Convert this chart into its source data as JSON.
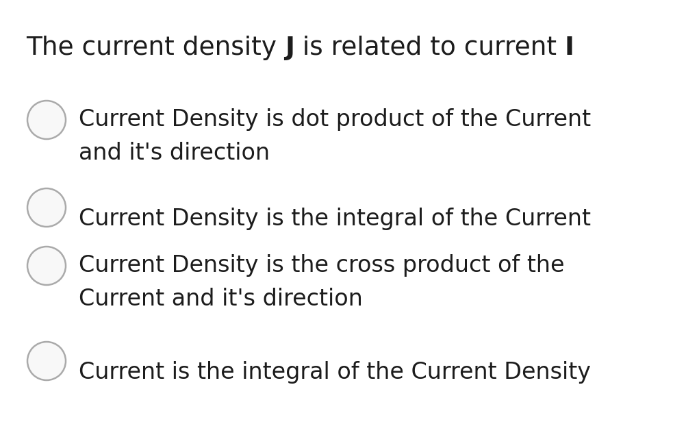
{
  "title": "The current density J is related to current I",
  "title_normal1": "The current density ",
  "title_bold1": "J",
  "title_normal2": " is related to current ",
  "title_bold2": "I",
  "title_fontsize": 27,
  "title_color": "#1c1c1c",
  "options": [
    {
      "line1": "Current Density is dot product of the Current",
      "line2": "and it's direction"
    },
    {
      "line1": "Current Density is the integral of the Current",
      "line2": null
    },
    {
      "line1": "Current Density is the cross product of the",
      "line2": "Current and it's direction"
    },
    {
      "line1": "Current is the integral of the Current Density",
      "line2": null
    }
  ],
  "option_fontsize": 24,
  "option_color": "#1c1c1c",
  "circle_color_edge": "#aaaaaa",
  "circle_color_face": "#f8f8f8",
  "background_color": "#ffffff"
}
